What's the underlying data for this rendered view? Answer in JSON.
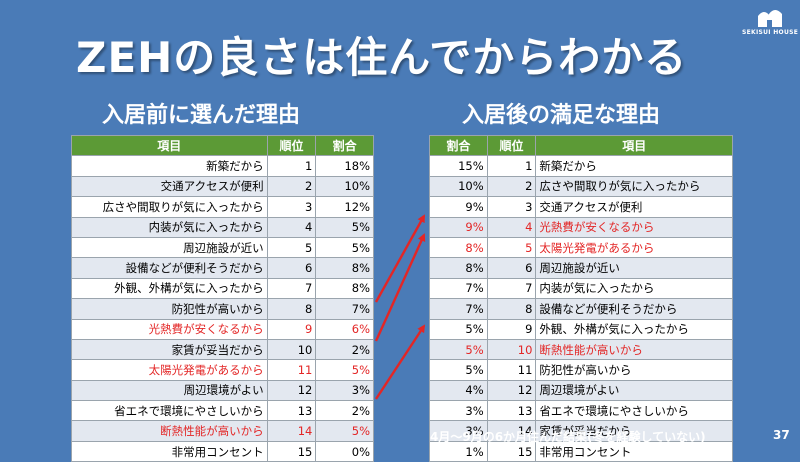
{
  "title": "ZEHの良さは住んでからわかる",
  "logo": {
    "brand": "SEKISUI HOUSE"
  },
  "before": {
    "heading": "入居前に選んだ理由",
    "headers": {
      "item": "項目",
      "rank": "順位",
      "ratio": "割合"
    },
    "rows": [
      {
        "item": "新築だから",
        "rank": "1",
        "ratio": "18%"
      },
      {
        "item": "交通アクセスが便利",
        "rank": "2",
        "ratio": "10%"
      },
      {
        "item": "広さや間取りが気に入ったから",
        "rank": "3",
        "ratio": "12%"
      },
      {
        "item": "内装が気に入ったから",
        "rank": "4",
        "ratio": "5%"
      },
      {
        "item": "周辺施設が近い",
        "rank": "5",
        "ratio": "5%"
      },
      {
        "item": "設備などが便利そうだから",
        "rank": "6",
        "ratio": "8%"
      },
      {
        "item": "外観、外構が気に入ったから",
        "rank": "7",
        "ratio": "8%"
      },
      {
        "item": "防犯性が高いから",
        "rank": "8",
        "ratio": "7%"
      },
      {
        "item": "光熱費が安くなるから",
        "rank": "9",
        "ratio": "6%",
        "highlight": true
      },
      {
        "item": "家賃が妥当だから",
        "rank": "10",
        "ratio": "2%"
      },
      {
        "item": "太陽光発電があるから",
        "rank": "11",
        "ratio": "5%",
        "highlight": true
      },
      {
        "item": "周辺環境がよい",
        "rank": "12",
        "ratio": "3%"
      },
      {
        "item": "省エネで環境にやさしいから",
        "rank": "13",
        "ratio": "2%"
      },
      {
        "item": "断熱性能が高いから",
        "rank": "14",
        "ratio": "5%",
        "highlight": true
      },
      {
        "item": "非常用コンセント",
        "rank": "15",
        "ratio": "0%"
      }
    ]
  },
  "after": {
    "heading": "入居後の満足な理由",
    "headers": {
      "ratio": "割合",
      "rank": "順位",
      "item": "項目"
    },
    "rows": [
      {
        "ratio": "15%",
        "rank": "1",
        "item": "新築だから"
      },
      {
        "ratio": "10%",
        "rank": "2",
        "item": "広さや間取りが気に入ったから"
      },
      {
        "ratio": "9%",
        "rank": "3",
        "item": "交通アクセスが便利"
      },
      {
        "ratio": "9%",
        "rank": "4",
        "item": "光熱費が安くなるから",
        "highlight": true
      },
      {
        "ratio": "8%",
        "rank": "5",
        "item": "太陽光発電があるから",
        "highlight": true
      },
      {
        "ratio": "8%",
        "rank": "6",
        "item": "周辺施設が近い"
      },
      {
        "ratio": "7%",
        "rank": "7",
        "item": "内装が気に入ったから"
      },
      {
        "ratio": "7%",
        "rank": "8",
        "item": "設備などが便利そうだから"
      },
      {
        "ratio": "5%",
        "rank": "9",
        "item": "外観、外構が気に入ったから"
      },
      {
        "ratio": "5%",
        "rank": "10",
        "item": "断熱性能が高いから",
        "highlight": true
      },
      {
        "ratio": "5%",
        "rank": "11",
        "item": "防犯性が高いから"
      },
      {
        "ratio": "4%",
        "rank": "12",
        "item": "周辺環境がよい"
      },
      {
        "ratio": "3%",
        "rank": "13",
        "item": "省エネで環境にやさしいから"
      },
      {
        "ratio": "3%",
        "rank": "14",
        "item": "家賃が妥当だから"
      },
      {
        "ratio": "1%",
        "rank": "15",
        "item": "非常用コンセント"
      }
    ]
  },
  "arrow_color": "#e32626",
  "highlight_color": "#e32626",
  "footer": {
    "note": "4月～9月の6か月住んだ結果(冬を経験していない)",
    "page": "37"
  }
}
